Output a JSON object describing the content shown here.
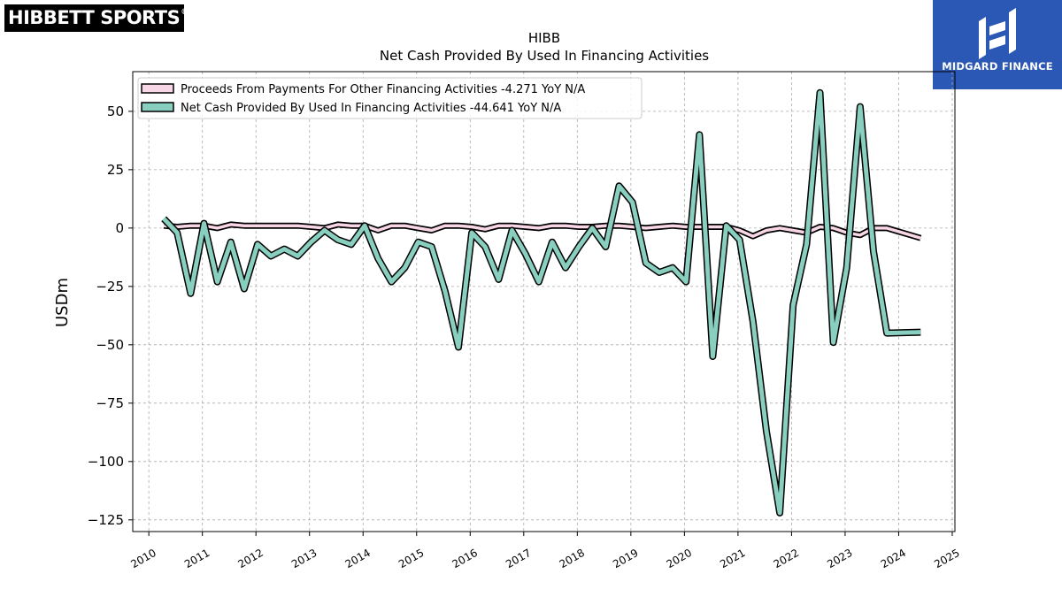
{
  "brand": {
    "logo_text": "HIBBETT SPORTS",
    "logo_mark": "®",
    "partner_text": "MIDGARD FINANCE"
  },
  "colors": {
    "series1_fill": "#f9d6e6",
    "series2_fill": "#88cfc0",
    "outline": "#000000",
    "partner_bg": "#2b58b4"
  },
  "chart_data": {
    "type": "line",
    "title": "HIBB",
    "subtitle": "Net Cash Provided By Used In Financing Activities",
    "ylabel": "USDm",
    "xlabel": "",
    "ylim": [
      -130,
      67
    ],
    "xlim": [
      2009.7,
      2025.05
    ],
    "x_ticks": [
      "2010",
      "2011",
      "2012",
      "2013",
      "2014",
      "2015",
      "2016",
      "2017",
      "2018",
      "2019",
      "2020",
      "2021",
      "2022",
      "2023",
      "2024",
      "2025"
    ],
    "y_ticks": [
      "50",
      "25",
      "0",
      "−25",
      "−50",
      "−75",
      "−100",
      "−125"
    ],
    "y_tick_values": [
      50,
      25,
      0,
      -25,
      -50,
      -75,
      -100,
      -125
    ],
    "grid": true,
    "legend_position": "top-left",
    "x": [
      2010.28,
      2010.53,
      2010.78,
      2011.03,
      2011.28,
      2011.53,
      2011.78,
      2012.03,
      2012.28,
      2012.53,
      2012.78,
      2013.03,
      2013.28,
      2013.53,
      2013.78,
      2014.03,
      2014.28,
      2014.53,
      2014.78,
      2015.03,
      2015.28,
      2015.53,
      2015.78,
      2016.03,
      2016.28,
      2016.53,
      2016.78,
      2017.03,
      2017.28,
      2017.53,
      2017.78,
      2018.03,
      2018.28,
      2018.53,
      2018.78,
      2019.03,
      2019.28,
      2019.53,
      2019.78,
      2020.03,
      2020.28,
      2020.53,
      2020.78,
      2021.03,
      2021.28,
      2021.53,
      2021.78,
      2022.03,
      2022.28,
      2022.53,
      2022.78,
      2023.03,
      2023.28,
      2023.53,
      2023.78,
      2024.41
    ],
    "series": [
      {
        "name": "Proceeds From Payments For Other Financing Activities",
        "legend": "Proceeds From Payments For Other Financing Activities  -4.271 YoY N/A",
        "values": [
          1,
          0.5,
          1,
          1,
          0,
          1.5,
          1,
          1,
          1,
          1,
          1,
          0.5,
          0,
          1.5,
          1,
          1,
          -1,
          1,
          1,
          0,
          -1,
          1,
          1,
          0.5,
          -0.5,
          1,
          1,
          0.5,
          0,
          1,
          1,
          0.5,
          0.5,
          1,
          1,
          0.5,
          0,
          0.5,
          1,
          0.5,
          0.5,
          0.5,
          0.5,
          -1,
          -3.5,
          -1,
          0,
          -1,
          -2,
          0.5,
          0,
          -2,
          -3,
          0,
          0,
          -4.3
        ]
      },
      {
        "name": "Net Cash Provided By Used In Financing Activities",
        "legend": "Net Cash Provided By Used In Financing Activities  -44.641 YoY N/A",
        "values": [
          4,
          -2,
          -28,
          2,
          -23,
          -6,
          -26,
          -7,
          -12,
          -9,
          -12,
          -6,
          -1,
          -5,
          -7,
          1,
          -13,
          -23,
          -17,
          -6,
          -8,
          -27,
          -51,
          -2,
          -8,
          -22,
          -1,
          -11,
          -23,
          -6,
          -17,
          -8,
          0,
          -8,
          18,
          11,
          -15,
          -19,
          -17,
          -23,
          40,
          -55,
          1,
          -5,
          -40,
          -87,
          -122,
          -33,
          -7,
          58,
          -49,
          -17,
          52,
          -10,
          -45,
          -44.6
        ]
      }
    ]
  }
}
